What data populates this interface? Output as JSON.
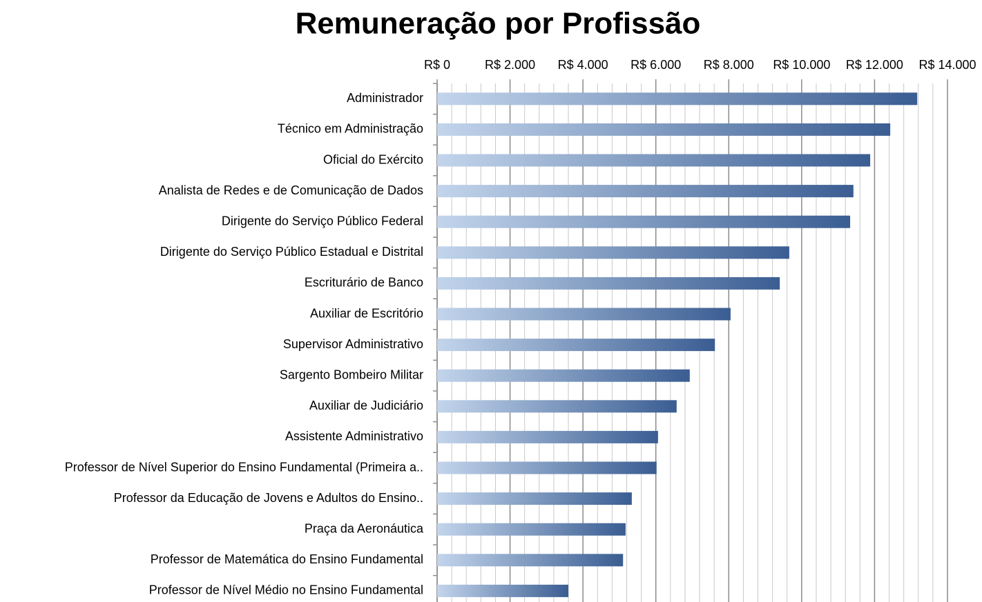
{
  "chart_data": {
    "type": "barh",
    "title": "Remuneração por Profissão",
    "categories": [
      "Administrador",
      "Técnico em Administração",
      "Oficial do Exército",
      "Analista de Redes e de Comunicação de Dados",
      "Dirigente do Serviço Público Federal",
      "Dirigente do Serviço Público Estadual e Distrital",
      "Escriturário de Banco",
      "Auxiliar de Escritório",
      "Supervisor Administrativo",
      "Sargento Bombeiro Militar",
      "Auxiliar de Judiciário",
      "Assistente Administrativo",
      "Professor de Nível Superior do Ensino Fundamental (Primeira a..",
      "Professor da  Educação de Jovens e Adultos do Ensino..",
      "Praça da Aeronáutica",
      "Professor de Matemática do Ensino Fundamental",
      "Professor de Nível Médio no Ensino Fundamental"
    ],
    "values": [
      13170,
      12430,
      11880,
      11420,
      11330,
      9660,
      9400,
      8050,
      7620,
      6930,
      6570,
      6060,
      6020,
      5340,
      5170,
      5100,
      3600
    ],
    "color": [
      "#c3d5ec",
      "#3a5d92"
    ],
    "xlim": [
      0,
      14000
    ],
    "xticks": [
      {
        "value": 0,
        "label": "R$ 0"
      },
      {
        "value": 2000,
        "label": "R$ 2.000"
      },
      {
        "value": 4000,
        "label": "R$ 4.000"
      },
      {
        "value": 6000,
        "label": "R$ 6.000"
      },
      {
        "value": 8000,
        "label": "R$ 8.000"
      },
      {
        "value": 10000,
        "label": "R$ 10.000"
      },
      {
        "value": 12000,
        "label": "R$ 12.000"
      },
      {
        "value": 14000,
        "label": "R$ 14.000"
      }
    ],
    "xminorticks": [
      400,
      800,
      1200,
      1600,
      2400,
      2800,
      3200,
      3600,
      4400,
      4800,
      5200,
      5600,
      6400,
      6800,
      7200,
      7600,
      8400,
      8800,
      9200,
      9600,
      10400,
      10800,
      11200,
      11600,
      12400,
      12800,
      13200,
      13600
    ],
    "grid": true
  }
}
